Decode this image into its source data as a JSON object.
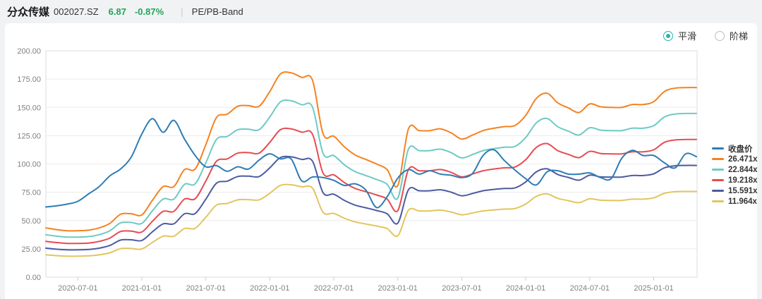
{
  "header": {
    "stock_name": "分众传媒",
    "stock_code": "002027.SZ",
    "price": "6.87",
    "change_percent": "-0.87%",
    "separator": "|",
    "view_title": "PE/PB-Band",
    "quote_color": "#22a45b"
  },
  "controls": {
    "accent_color": "#2bb3a9",
    "options": [
      {
        "label": "平滑",
        "selected": true
      },
      {
        "label": "阶梯",
        "selected": false
      }
    ]
  },
  "chart_data": {
    "type": "line",
    "title": "PE Band chart (smoothed)",
    "grid": true,
    "legend_position": "right",
    "x_axis": {
      "ticks": [
        {
          "label": "2020-07-01",
          "month_index": 3
        },
        {
          "label": "2021-01-01",
          "month_index": 9
        },
        {
          "label": "2021-07-01",
          "month_index": 15
        },
        {
          "label": "2022-01-01",
          "month_index": 21
        },
        {
          "label": "2022-07-01",
          "month_index": 27
        },
        {
          "label": "2023-01-01",
          "month_index": 33
        },
        {
          "label": "2023-07-01",
          "month_index": 39
        },
        {
          "label": "2024-01-01",
          "month_index": 45
        },
        {
          "label": "2024-07-01",
          "month_index": 51
        },
        {
          "label": "2025-01-01",
          "month_index": 57
        }
      ]
    },
    "y_axis": {
      "min": 0,
      "max": 200,
      "tick_values": [
        0,
        25,
        50,
        75,
        100,
        125,
        150,
        175,
        200
      ],
      "tick_labels": [
        "0.00",
        "25.00",
        "50.00",
        "75.00",
        "100.00",
        "125.00",
        "150.00",
        "175.00",
        "200.00"
      ]
    },
    "months": [
      "2020-04",
      "2020-05",
      "2020-06",
      "2020-07",
      "2020-08",
      "2020-09",
      "2020-10",
      "2020-11",
      "2020-12",
      "2021-01",
      "2021-02",
      "2021-03",
      "2021-04",
      "2021-05",
      "2021-06",
      "2021-07",
      "2021-08",
      "2021-09",
      "2021-10",
      "2021-11",
      "2021-12",
      "2022-01",
      "2022-02",
      "2022-03",
      "2022-04",
      "2022-05",
      "2022-06",
      "2022-07",
      "2022-08",
      "2022-09",
      "2022-10",
      "2022-11",
      "2022-12",
      "2023-01",
      "2023-02",
      "2023-03",
      "2023-04",
      "2023-05",
      "2023-06",
      "2023-07",
      "2023-08",
      "2023-09",
      "2023-10",
      "2023-11",
      "2023-12",
      "2024-01",
      "2024-02",
      "2024-03",
      "2024-04",
      "2024-05",
      "2024-06",
      "2024-07",
      "2024-08",
      "2024-09",
      "2024-10",
      "2024-11",
      "2024-12",
      "2025-01",
      "2025-02",
      "2025-03",
      "2025-04",
      "2025-05"
    ],
    "series": [
      {
        "name": "收盘价",
        "color": "#2e7db5",
        "values": [
          62,
          63,
          64.5,
          67,
          73.5,
          80,
          89.5,
          95.5,
          106,
          126.5,
          140,
          128,
          138.5,
          122,
          107.5,
          97.5,
          98.5,
          93.5,
          97.5,
          95.5,
          103.5,
          109,
          104.5,
          104.5,
          85,
          88.5,
          88,
          85.5,
          81,
          82.5,
          77,
          61.5,
          71,
          87.5,
          95,
          91,
          94,
          91,
          90,
          88,
          91.5,
          107.5,
          112.5,
          103,
          94.5,
          87,
          81.5,
          93,
          94,
          91,
          91,
          92,
          88,
          87,
          105,
          112,
          107.5,
          107.5,
          101,
          96.5,
          109,
          106.5
        ]
      },
      {
        "name": "26.471x",
        "color": "#f58220",
        "values": [
          43.5,
          42,
          41,
          41,
          41.5,
          43.5,
          47.5,
          55.5,
          56,
          55,
          68,
          80,
          80,
          95,
          95.5,
          117,
          141,
          144,
          151,
          151.5,
          151,
          164,
          179.5,
          180.5,
          176.5,
          174,
          126.5,
          124.5,
          115,
          108,
          104,
          100,
          95,
          81,
          131,
          129.5,
          129.5,
          131,
          127.5,
          122,
          125.5,
          129.5,
          131.5,
          133,
          134,
          143,
          158,
          162.5,
          154,
          149.5,
          145.5,
          153,
          150.5,
          150,
          150,
          152.5,
          152.5,
          155,
          164,
          167,
          167.5,
          167.5
        ]
      },
      {
        "name": "22.844x",
        "color": "#6ecac3",
        "values": [
          37.5,
          36.2,
          35.4,
          35.4,
          35.8,
          37.5,
          41,
          47.9,
          48.3,
          47.5,
          58.7,
          69,
          69,
          82,
          82.4,
          101,
          121.7,
          124.3,
          130.3,
          130.7,
          130.3,
          141.5,
          154.9,
          155.8,
          152.3,
          150.2,
          109.2,
          107.4,
          99.2,
          93.2,
          89.8,
          86.3,
          82,
          69.9,
          113.1,
          111.8,
          111.8,
          113.1,
          110,
          105.3,
          108.3,
          111.8,
          113.5,
          114.8,
          115.6,
          123.4,
          136.4,
          140.2,
          132.9,
          129,
          125.6,
          132,
          129.9,
          129.5,
          129.5,
          131.6,
          131.6,
          133.8,
          141.5,
          144.1,
          144.6,
          144.6
        ]
      },
      {
        "name": "19.218x",
        "color": "#e64c51",
        "values": [
          31.6,
          30.5,
          29.8,
          29.8,
          30.1,
          31.6,
          34.5,
          40.3,
          40.7,
          39.9,
          49.4,
          58.1,
          58.1,
          69,
          69.3,
          84.9,
          102.4,
          104.5,
          109.6,
          110,
          109.6,
          119.1,
          130.3,
          131,
          128.1,
          126.3,
          91.8,
          90.4,
          83.5,
          78.4,
          75.5,
          72.6,
          69,
          58.8,
          95.1,
          94,
          94,
          95.1,
          92.6,
          88.6,
          91.1,
          94,
          95.5,
          96.6,
          97.3,
          103.8,
          114.7,
          118,
          111.8,
          108.5,
          105.6,
          111.1,
          109.3,
          108.9,
          108.9,
          110.7,
          110.7,
          112.5,
          119.1,
          121.2,
          121.6,
          121.6
        ]
      },
      {
        "name": "15.591x",
        "color": "#4d5ba1",
        "values": [
          25.6,
          24.7,
          24.1,
          24.1,
          24.4,
          25.6,
          28,
          32.7,
          33,
          32.4,
          40.1,
          47.1,
          47.1,
          56,
          56.2,
          68.9,
          83,
          84.8,
          88.9,
          89.2,
          88.9,
          96.6,
          105.7,
          106.3,
          104,
          102.5,
          74.5,
          73.3,
          67.7,
          63.6,
          61.3,
          58.9,
          56,
          47.7,
          77.2,
          76.3,
          76.3,
          77.2,
          75.1,
          71.9,
          73.9,
          76.3,
          77.5,
          78.3,
          78.9,
          84.2,
          93.1,
          95.7,
          90.7,
          88.1,
          85.7,
          90.1,
          88.6,
          88.4,
          88.4,
          89.8,
          89.8,
          91.3,
          96.6,
          98.4,
          98.7,
          98.7
        ]
      },
      {
        "name": "11.964x",
        "color": "#e2c55f",
        "values": [
          19.7,
          19,
          18.5,
          18.5,
          18.8,
          19.7,
          21.5,
          25.1,
          25.3,
          24.9,
          30.7,
          36.2,
          36.2,
          42.9,
          43.2,
          52.9,
          63.7,
          65.1,
          68.3,
          68.5,
          68.3,
          74.1,
          81.1,
          81.6,
          79.8,
          78.6,
          57.2,
          56.3,
          52,
          48.8,
          47,
          45.2,
          42.9,
          36.6,
          59.2,
          58.5,
          58.5,
          59.2,
          57.6,
          55.1,
          56.7,
          58.5,
          59.4,
          60.1,
          60.6,
          64.6,
          71.4,
          73.5,
          69.6,
          67.6,
          65.8,
          69.2,
          68,
          67.8,
          67.8,
          68.9,
          68.9,
          70.1,
          74.1,
          75.5,
          75.7,
          75.7
        ]
      }
    ]
  }
}
